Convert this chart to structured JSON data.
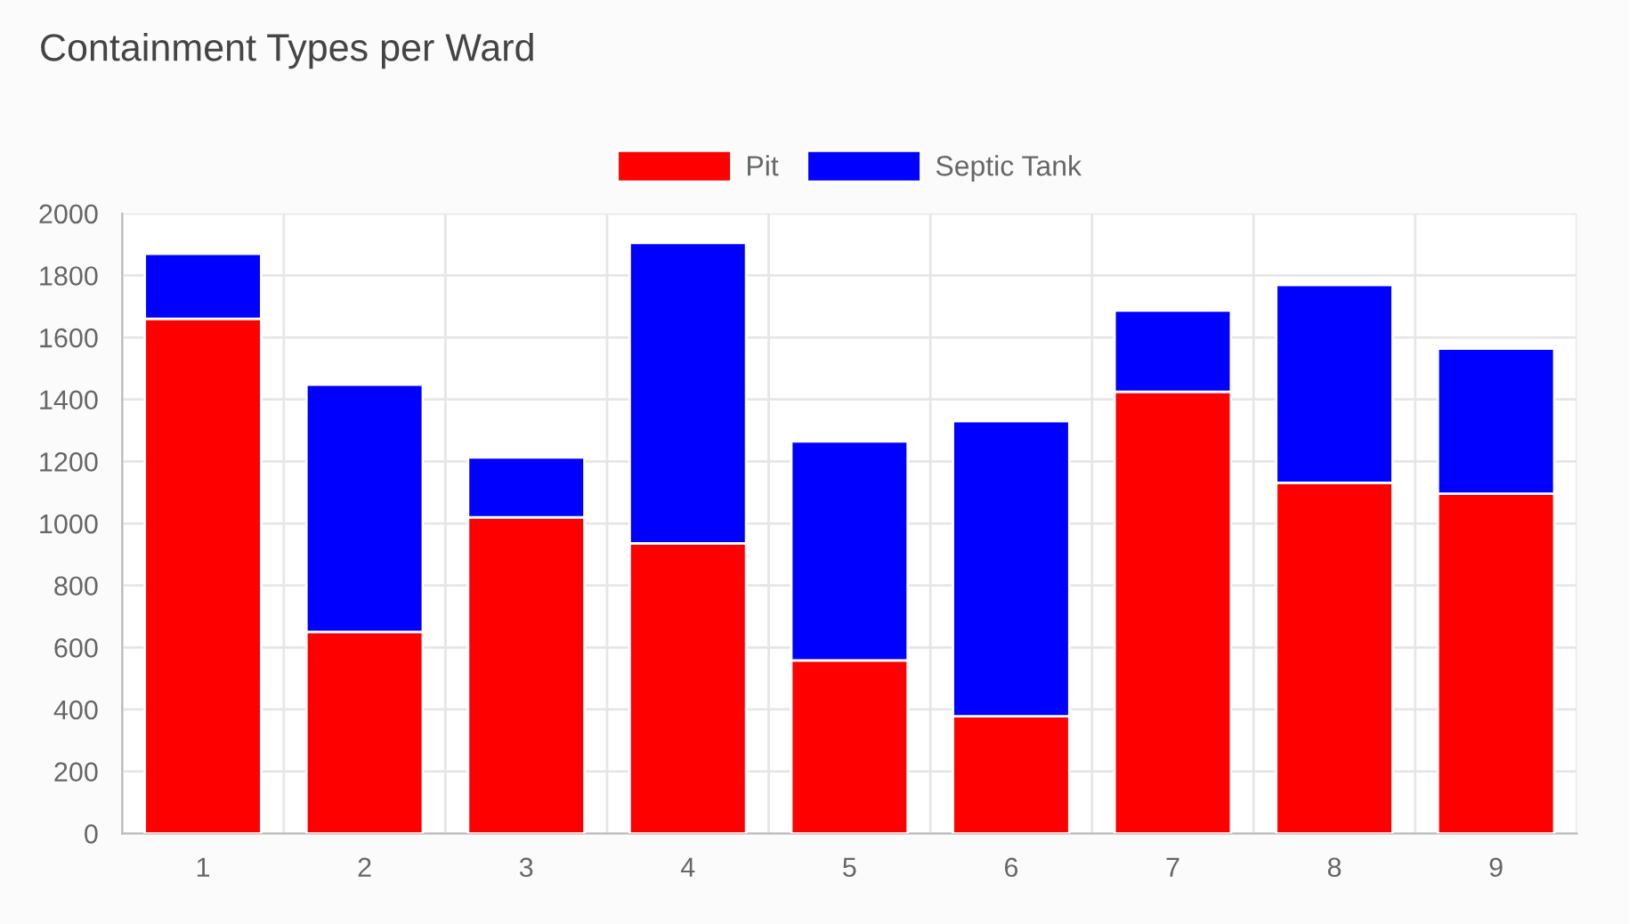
{
  "chart_data": {
    "type": "bar",
    "title": "Containment Types per Ward",
    "stacked": true,
    "categories": [
      "1",
      "2",
      "3",
      "4",
      "5",
      "6",
      "7",
      "8",
      "9"
    ],
    "series": [
      {
        "name": "Pit",
        "color": "#ff0000",
        "values": [
          1660,
          650,
          1020,
          936,
          558,
          378,
          1425,
          1131,
          1096
        ]
      },
      {
        "name": "Septic Tank",
        "color": "#0000ff",
        "values": [
          210,
          798,
          193,
          969,
          707,
          952,
          262,
          638,
          468
        ]
      }
    ],
    "ylim": [
      0,
      2000
    ],
    "yticks": [
      0,
      200,
      400,
      600,
      800,
      1000,
      1200,
      1400,
      1600,
      1800,
      2000
    ],
    "grid": true,
    "legend": "top"
  }
}
